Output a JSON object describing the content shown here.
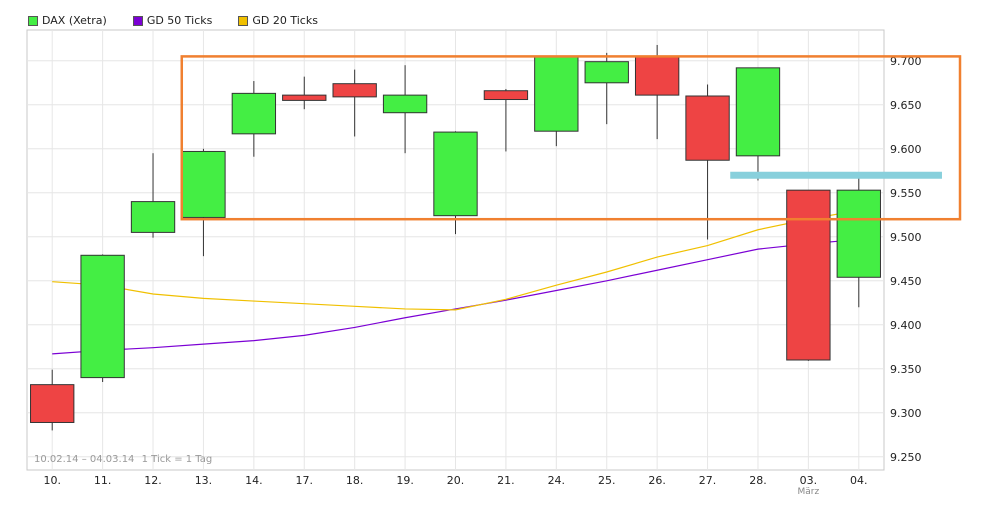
{
  "legend": [
    {
      "label": "DAX (Xetra)",
      "color": "#44ee44"
    },
    {
      "label": "GD 50 Ticks",
      "color": "#7b00d4"
    },
    {
      "label": "GD 20 Ticks",
      "color": "#f0c000"
    }
  ],
  "footer": {
    "range": "10.02.14 – 04.03.14",
    "tick_info": "1 Tick = 1 Tag"
  },
  "chart_data": {
    "type": "candlestick",
    "categories": [
      "10.",
      "11.",
      "12.",
      "13.",
      "14.",
      "17.",
      "18.",
      "19.",
      "20.",
      "21.",
      "24.",
      "25.",
      "26.",
      "27.",
      "28.",
      "03.",
      "04."
    ],
    "month_label": "März",
    "ohlc": [
      {
        "open": 9332,
        "high": 9349,
        "low": 9280,
        "close": 9289,
        "up": false
      },
      {
        "open": 9340,
        "high": 9480,
        "low": 9335,
        "close": 9479,
        "up": true
      },
      {
        "open": 9505,
        "high": 9595,
        "low": 9499,
        "close": 9540,
        "up": true
      },
      {
        "open": 9522,
        "high": 9600,
        "low": 9478,
        "close": 9597,
        "up": true
      },
      {
        "open": 9617,
        "high": 9677,
        "low": 9591,
        "close": 9663,
        "up": true
      },
      {
        "open": 9655,
        "high": 9682,
        "low": 9645,
        "close": 9661,
        "up": false
      },
      {
        "open": 9674,
        "high": 9690,
        "low": 9614,
        "close": 9659,
        "up": false
      },
      {
        "open": 9641,
        "high": 9695,
        "low": 9595,
        "close": 9661,
        "up": true
      },
      {
        "open": 9524,
        "high": 9620,
        "low": 9503,
        "close": 9619,
        "up": true
      },
      {
        "open": 9666,
        "high": 9668,
        "low": 9597,
        "close": 9656,
        "up": false
      },
      {
        "open": 9620,
        "high": 9706,
        "low": 9603,
        "close": 9705,
        "up": true
      },
      {
        "open": 9675,
        "high": 9709,
        "low": 9628,
        "close": 9699,
        "up": true
      },
      {
        "open": 9705,
        "high": 9718,
        "low": 9611,
        "close": 9661,
        "up": false
      },
      {
        "open": 9660,
        "high": 9673,
        "low": 9497,
        "close": 9587,
        "up": false
      },
      {
        "open": 9592,
        "high": 9692,
        "low": 9564,
        "close": 9692,
        "up": true
      },
      {
        "open": 9553,
        "high": 9553,
        "low": 9359,
        "close": 9360,
        "up": false
      },
      {
        "open": 9454,
        "high": 9572,
        "low": 9420,
        "close": 9553,
        "up": true
      }
    ],
    "series": [
      {
        "name": "GD 50 Ticks",
        "color": "#7b00d4",
        "values": [
          9367,
          9371,
          9374,
          9378,
          9382,
          9388,
          9397,
          9408,
          9418,
          9428,
          9439,
          9450,
          9462,
          9474,
          9486,
          9492,
          9497
        ]
      },
      {
        "name": "GD 20 Ticks",
        "color": "#f0c000",
        "values": [
          9449,
          9445,
          9435,
          9430,
          9427,
          9424,
          9421,
          9418,
          9417,
          9429,
          9445,
          9460,
          9477,
          9490,
          9508,
          9520,
          9530
        ]
      }
    ],
    "yticks": [
      9250,
      9300,
      9350,
      9400,
      9450,
      9500,
      9550,
      9600,
      9650,
      9700
    ],
    "ytick_labels": [
      "9.250",
      "9.300",
      "9.350",
      "9.400",
      "9.450",
      "9.500",
      "9.550",
      "9.600",
      "9.650",
      "9.700"
    ],
    "ylim": [
      9235,
      9735
    ],
    "up_color": "#44ee44",
    "down_color": "#ee4444",
    "grid": true,
    "legend_position": "top-left",
    "annotations": [
      {
        "type": "box",
        "color": "#f08030",
        "x_from": "13.",
        "x_to": "04.",
        "y_from": 9520,
        "y_to": 9705
      },
      {
        "type": "line",
        "color": "#88d0dc",
        "x_from": "28.",
        "x_to": "04.",
        "y": 9570
      }
    ]
  }
}
